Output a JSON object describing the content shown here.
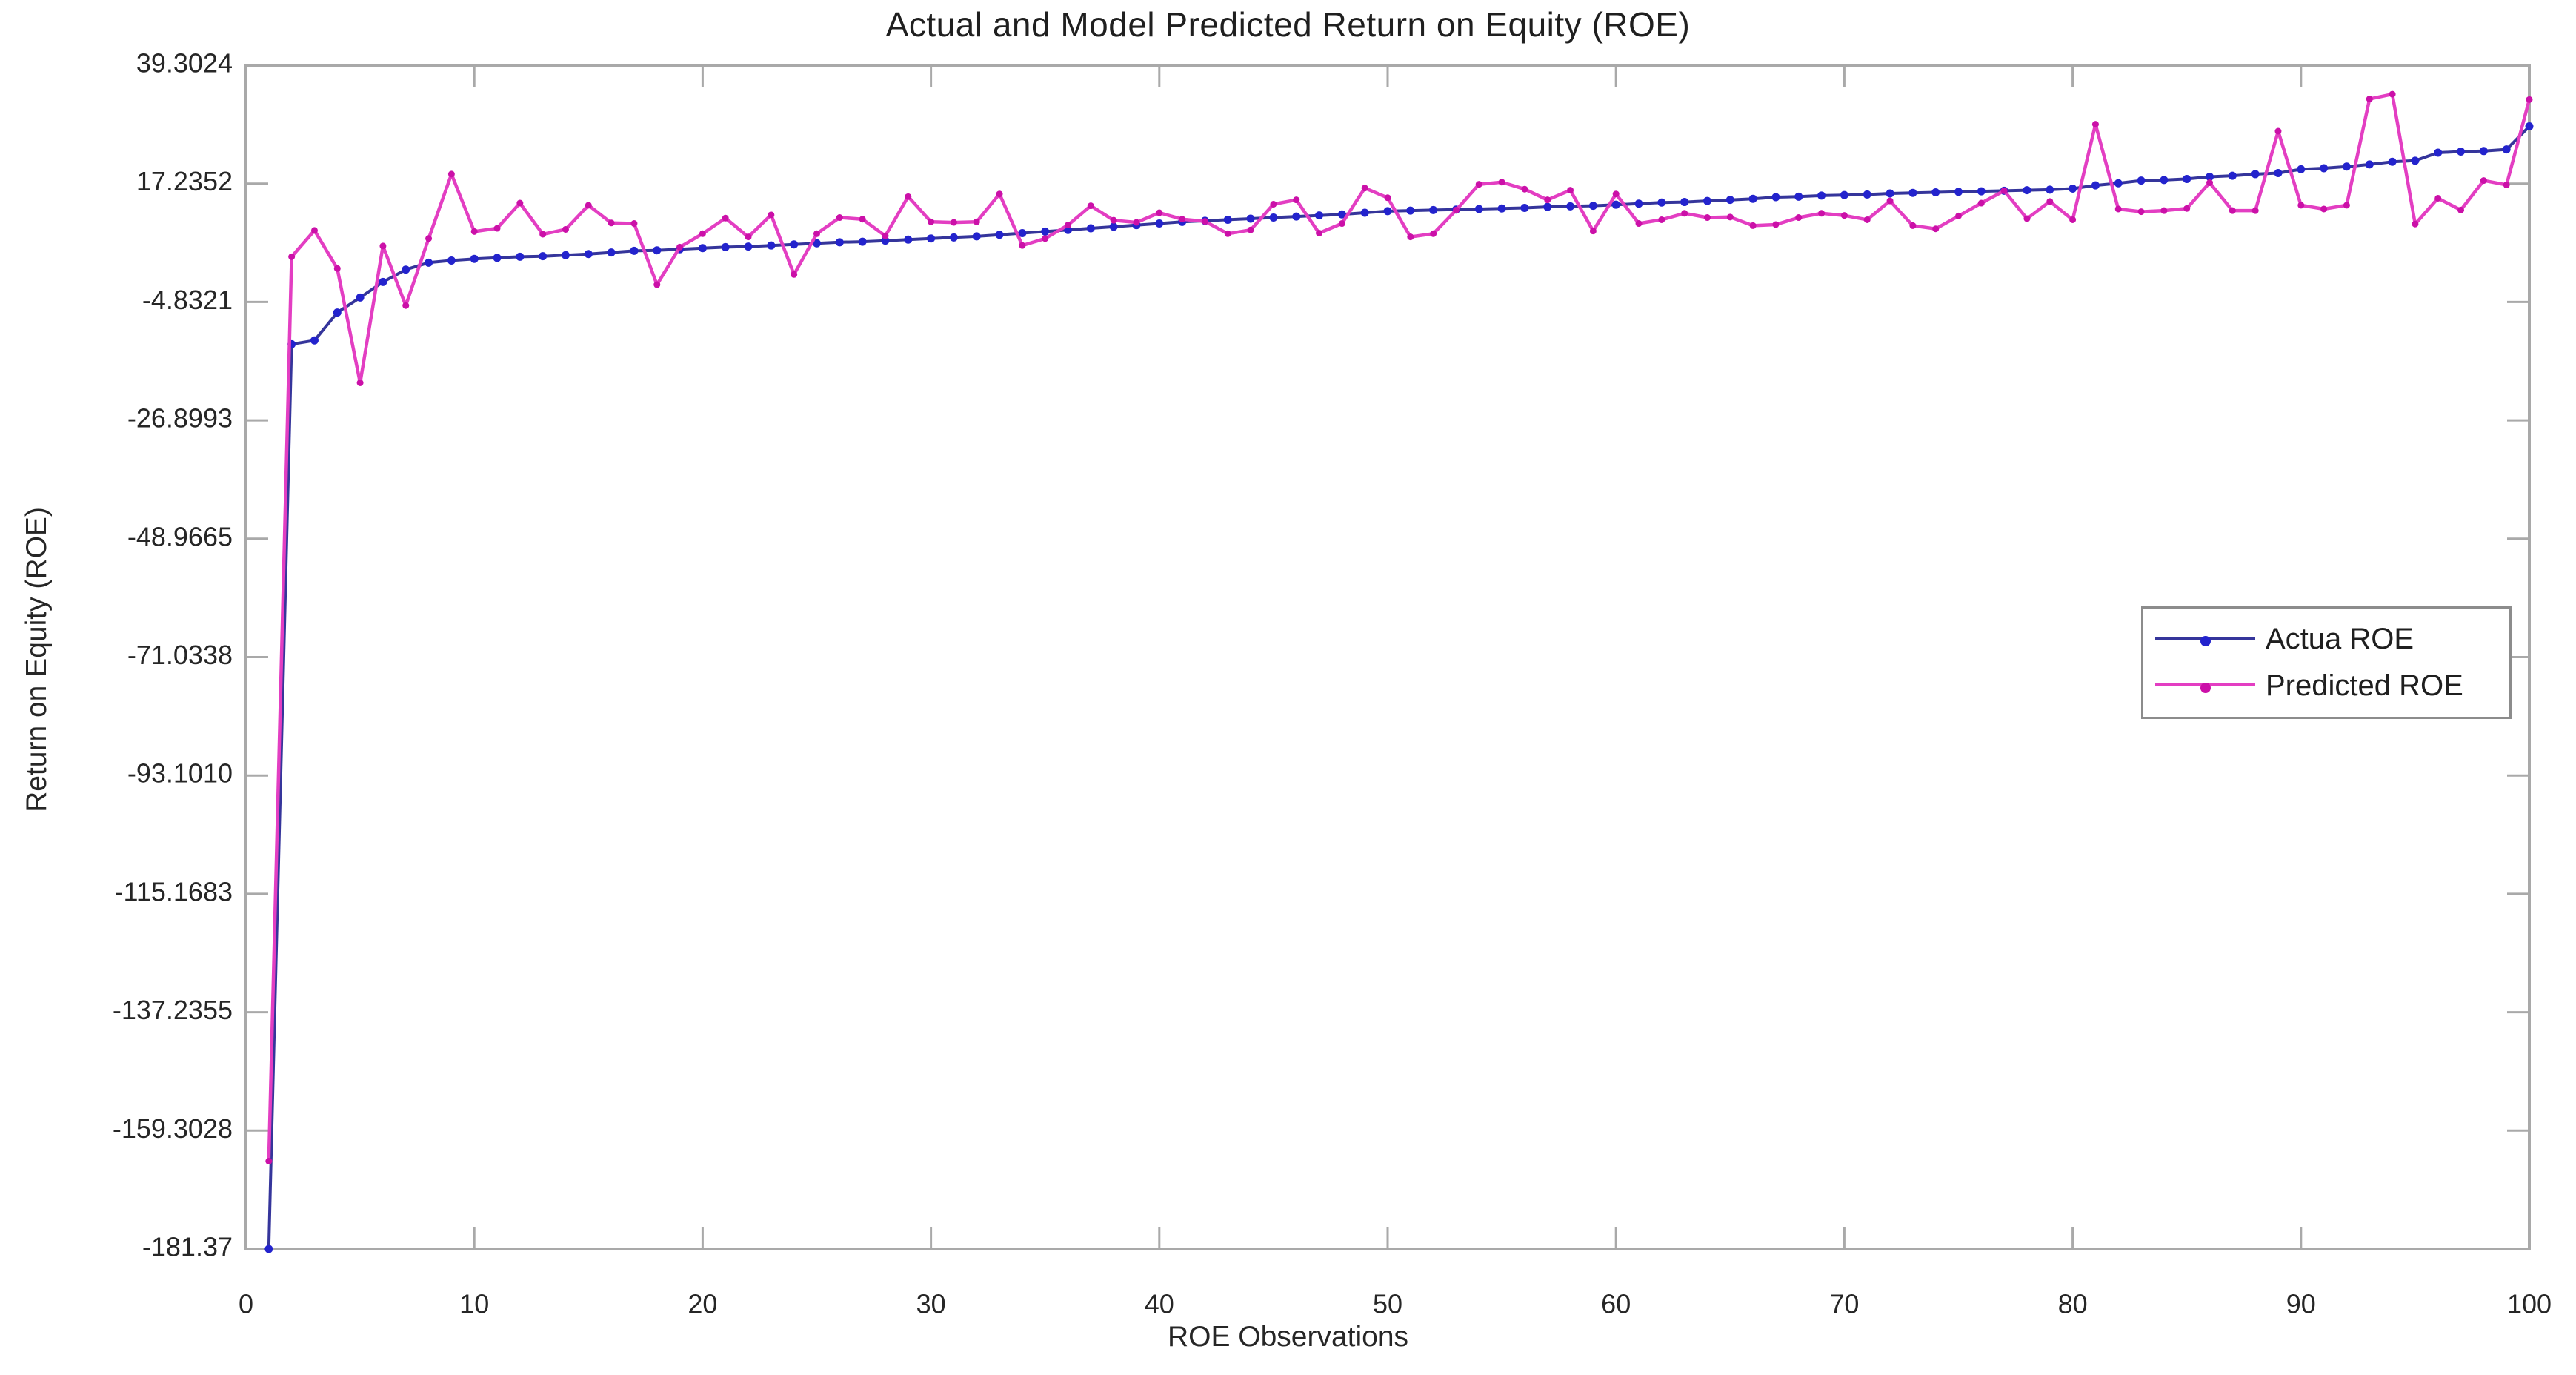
{
  "figure": {
    "title": "Actual and Model Predicted Return on Equity (ROE)",
    "x_axis": {
      "label": "ROE Observations"
    },
    "y_axis": {
      "label": "Return on Equity (ROE)"
    },
    "legend": {
      "items": [
        {
          "label": "Actua ROE"
        },
        {
          "label": "Predicted ROE"
        }
      ]
    }
  },
  "colors": {
    "actual_line": "#35359b",
    "actual_marker": "#2323cd",
    "predicted_line": "#e33ec2",
    "predicted_marker": "#cb10a8",
    "axis": "#a9a9a9",
    "tick_text": "#262626"
  },
  "chart_data": {
    "type": "line",
    "title": "Actual and Model Predicted Return on Equity (ROE)",
    "xlabel": "ROE Observations",
    "ylabel": "Return on Equity (ROE)",
    "xlim": [
      0,
      100
    ],
    "ylim": [
      -181.37,
      39.3024
    ],
    "grid": false,
    "legend_position": "right-middle",
    "x_ticks": [
      0,
      10,
      20,
      30,
      40,
      50,
      60,
      70,
      80,
      90,
      100
    ],
    "x_tick_labels": [
      "0",
      "10",
      "20",
      "30",
      "40",
      "50",
      "60",
      "70",
      "80",
      "90",
      "100"
    ],
    "y_ticks": [
      39.3024,
      17.2352,
      -4.8321,
      -26.8993,
      -48.9665,
      -71.0338,
      -93.101,
      -115.1683,
      -137.2355,
      -159.3028,
      -181.37
    ],
    "y_tick_labels": [
      "39.3024",
      "17.2352",
      "-4.8321",
      "-26.8993",
      "-48.9665",
      "-71.0338",
      "-93.1010",
      "-115.1683",
      "-137.2355",
      "-159.3028",
      "-181.37"
    ],
    "x": [
      1,
      2,
      3,
      4,
      5,
      6,
      7,
      8,
      9,
      10,
      11,
      12,
      13,
      14,
      15,
      16,
      17,
      18,
      19,
      20,
      21,
      22,
      23,
      24,
      25,
      26,
      27,
      28,
      29,
      30,
      31,
      32,
      33,
      34,
      35,
      36,
      37,
      38,
      39,
      40,
      41,
      42,
      43,
      44,
      45,
      46,
      47,
      48,
      49,
      50,
      51,
      52,
      53,
      54,
      55,
      56,
      57,
      58,
      59,
      60,
      61,
      62,
      63,
      64,
      65,
      66,
      67,
      68,
      69,
      70,
      71,
      72,
      73,
      74,
      75,
      76,
      77,
      78,
      79,
      80,
      81,
      82,
      83,
      84,
      85,
      86,
      87,
      88,
      89,
      90,
      91,
      92,
      93,
      94,
      95,
      96,
      97,
      98,
      99,
      100
    ],
    "series": [
      {
        "name": "Actua ROE",
        "values": [
          -181.37,
          -12.7,
          -12.0,
          -6.8,
          -4.0,
          -1.1,
          1.2,
          2.5,
          2.9,
          3.2,
          3.4,
          3.6,
          3.7,
          3.9,
          4.1,
          4.4,
          4.7,
          4.8,
          5.0,
          5.2,
          5.4,
          5.5,
          5.7,
          5.9,
          6.1,
          6.3,
          6.4,
          6.6,
          6.8,
          7.0,
          7.2,
          7.4,
          7.7,
          8.0,
          8.3,
          8.6,
          8.9,
          9.2,
          9.5,
          9.8,
          10.1,
          10.3,
          10.5,
          10.7,
          10.9,
          11.1,
          11.3,
          11.5,
          11.8,
          12.1,
          12.2,
          12.3,
          12.4,
          12.5,
          12.6,
          12.7,
          12.9,
          13.0,
          13.1,
          13.3,
          13.5,
          13.7,
          13.8,
          14.0,
          14.2,
          14.4,
          14.7,
          14.8,
          15.0,
          15.1,
          15.2,
          15.4,
          15.5,
          15.6,
          15.7,
          15.8,
          15.9,
          16.0,
          16.1,
          16.3,
          16.9,
          17.3,
          17.8,
          17.9,
          18.1,
          18.5,
          18.7,
          19.0,
          19.2,
          19.9,
          20.1,
          20.4,
          20.8,
          21.3,
          21.5,
          23.0,
          23.2,
          23.3,
          23.6,
          27.9
        ]
      },
      {
        "name": "Predicted ROE",
        "values": [
          -165.0,
          3.6,
          8.5,
          1.4,
          -19.9,
          5.6,
          -5.5,
          7.0,
          19.0,
          8.3,
          8.9,
          13.6,
          7.8,
          8.7,
          13.2,
          9.9,
          9.8,
          -1.6,
          5.4,
          7.9,
          10.8,
          7.3,
          11.4,
          0.3,
          7.9,
          10.9,
          10.6,
          7.5,
          14.8,
          10.1,
          10.0,
          10.1,
          15.3,
          5.7,
          7.0,
          9.5,
          13.1,
          10.4,
          10.0,
          11.8,
          10.6,
          10.2,
          7.9,
          8.6,
          13.4,
          14.2,
          8.0,
          9.8,
          16.4,
          14.6,
          7.3,
          7.9,
          12.3,
          17.1,
          17.5,
          16.2,
          14.2,
          16.0,
          8.4,
          15.3,
          9.8,
          10.5,
          11.7,
          10.9,
          11.0,
          9.4,
          9.6,
          10.9,
          11.7,
          11.3,
          10.5,
          14.0,
          9.4,
          8.8,
          11.2,
          13.6,
          15.9,
          10.7,
          13.9,
          10.5,
          28.3,
          12.5,
          12.0,
          12.2,
          12.6,
          17.4,
          12.2,
          12.2,
          27.0,
          13.2,
          12.5,
          13.2,
          33.0,
          33.9,
          9.7,
          14.5,
          12.3,
          17.8,
          17.0,
          32.9
        ]
      }
    ]
  }
}
